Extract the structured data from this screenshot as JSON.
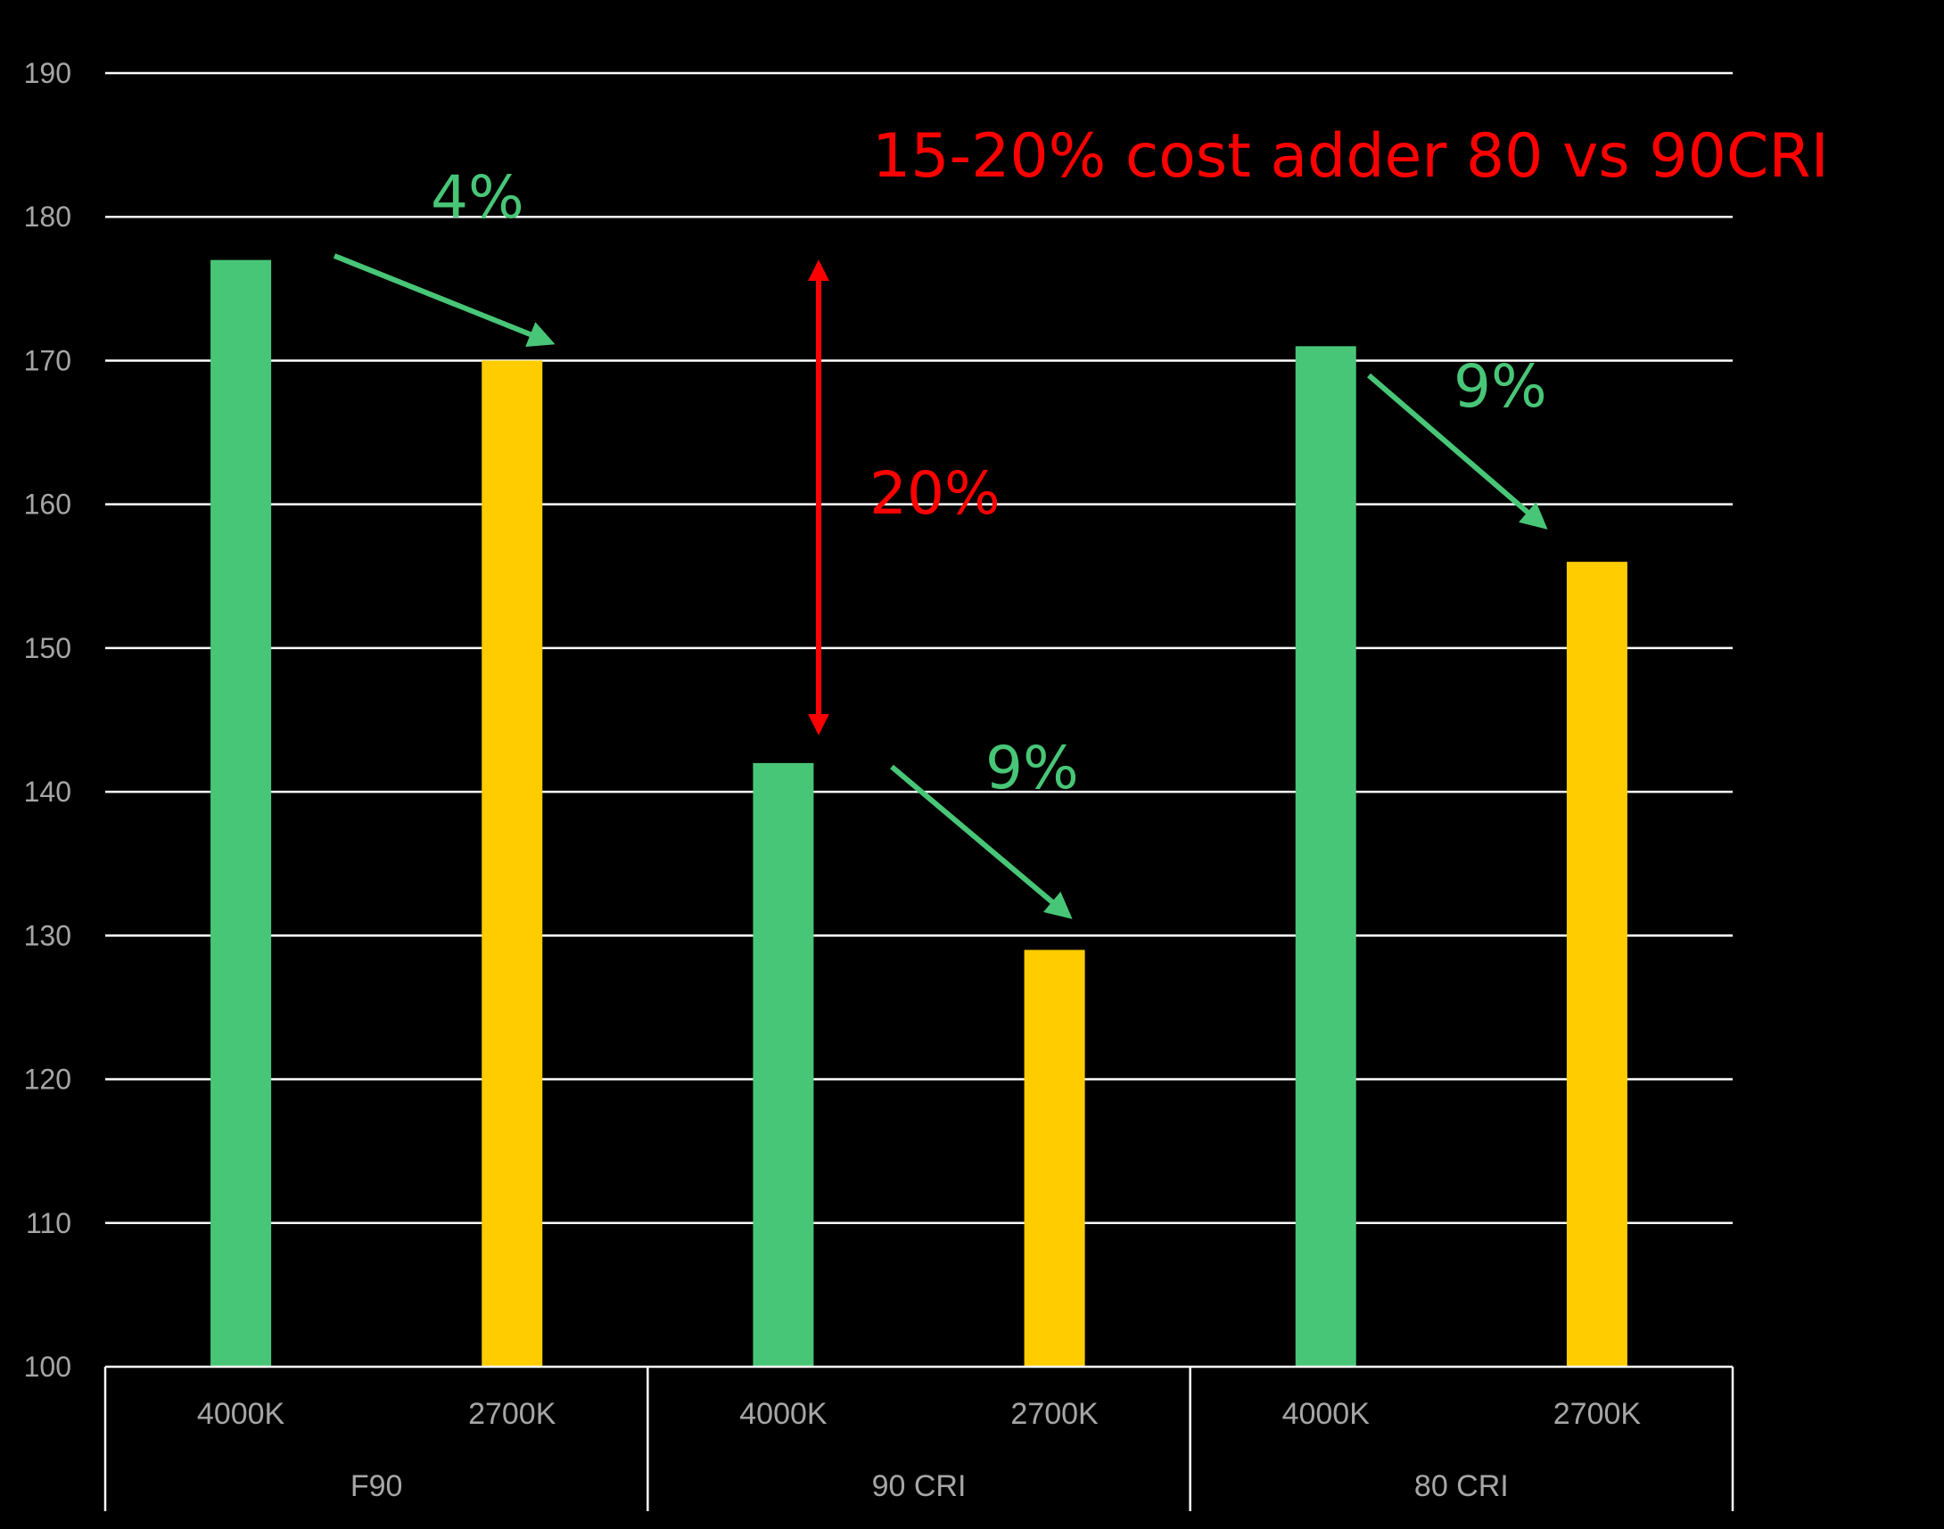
{
  "colors": {
    "background": "#000000",
    "grid": "#ffffff",
    "bar_4000K": "#48c677",
    "bar_2700K": "#ffcc00",
    "annotation_green": "#48c677",
    "annotation_red": "#ff0000",
    "tick_text": "#a6a6a6"
  },
  "chart_data": {
    "type": "bar",
    "title": "",
    "xlabel": "",
    "ylabel": "",
    "ylim": [
      100,
      190
    ],
    "yticks": [
      100,
      110,
      120,
      130,
      140,
      150,
      160,
      170,
      180,
      190
    ],
    "grid": true,
    "legend": "none",
    "groups": [
      {
        "label": "F90",
        "bars": [
          {
            "label": "4000K",
            "value": 177
          },
          {
            "label": "2700K",
            "value": 170
          }
        ]
      },
      {
        "label": "90 CRI",
        "bars": [
          {
            "label": "4000K",
            "value": 142
          },
          {
            "label": "2700K",
            "value": 129
          }
        ]
      },
      {
        "label": "80 CRI",
        "bars": [
          {
            "label": "4000K",
            "value": 171
          },
          {
            "label": "2700K",
            "value": 156
          }
        ]
      }
    ],
    "annotations": {
      "headline": "15-20% cost adder 80 vs 90CRI",
      "f90_drop": "4%",
      "cri90_drop": "9%",
      "cri80_drop": "9%",
      "cri_gap": "20%"
    }
  }
}
